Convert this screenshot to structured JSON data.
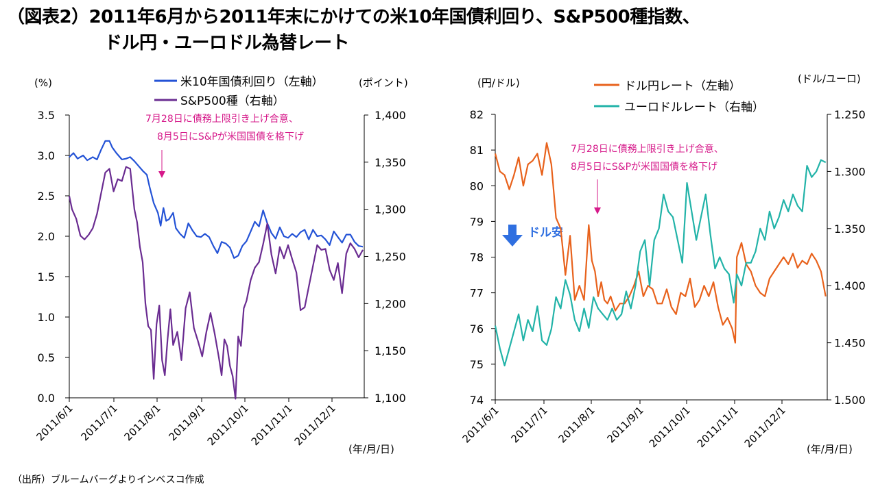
{
  "page": {
    "title_line1": "（図表2）2011年6月から2011年末にかけての米10年国債利回り、S&P500種指数、",
    "title_line2": "ドル円・ユーロドル為替レート",
    "source": "（出所）ブルームバーグよりインベスコ作成"
  },
  "colors": {
    "us10y": "#2453d6",
    "sp500": "#6a2c91",
    "usdjpy": "#e8621c",
    "eurusd": "#22b3a8",
    "annotation": "#d6198a",
    "dollar_weak_arrow": "#2f6fe0"
  },
  "chart_data": [
    {
      "type": "line",
      "title": "米10年国債利回り・S&P500種",
      "left_axis_unit": "(%)",
      "right_axis_unit": "(ポイント)",
      "x_unit": "(年/月/日)",
      "x_ticks": [
        "2011/6/1",
        "2011/7/1",
        "2011/8/1",
        "2011/9/1",
        "2011/10/1",
        "2011/11/1",
        "2011/12/1"
      ],
      "x_range_days": [
        0,
        213
      ],
      "ylim_left": [
        0,
        3.5
      ],
      "yticks_left": [
        "0.0",
        "0.5",
        "1.0",
        "1.5",
        "2.0",
        "2.5",
        "3.0",
        "3.5"
      ],
      "ylim_right": [
        1100,
        1400
      ],
      "yticks_right": [
        "1,100",
        "1,150",
        "1,200",
        "1,250",
        "1,300",
        "1,350",
        "1,400"
      ],
      "legend": [
        "米10年国債利回り（左軸）",
        "S&P500種（右軸）"
      ],
      "annotation": [
        "7月28日に債務上限引き上げ合意、",
        "8月5日にS&Pが米国国債を格下げ"
      ],
      "series": [
        {
          "name": "米10年国債利回り（左軸）",
          "axis": "left",
          "x": [
            0,
            3,
            6,
            10,
            13,
            17,
            20,
            23,
            26,
            29,
            31,
            34,
            38,
            41,
            44,
            47,
            50,
            53,
            56,
            58,
            61,
            64,
            66,
            68,
            70,
            72,
            75,
            77,
            80,
            83,
            86,
            89,
            92,
            95,
            98,
            101,
            104,
            107,
            110,
            113,
            116,
            119,
            122,
            125,
            128,
            131,
            134,
            137,
            140,
            143,
            146,
            149,
            152,
            155,
            158,
            161,
            164,
            167,
            170,
            173,
            176,
            179,
            182,
            185,
            188,
            191,
            194,
            197,
            200,
            203,
            206,
            209,
            212
          ],
          "values": [
            2.98,
            3.03,
            2.96,
            3.0,
            2.94,
            2.98,
            2.95,
            3.07,
            3.18,
            3.18,
            3.1,
            3.03,
            2.95,
            2.96,
            2.98,
            2.93,
            2.87,
            2.81,
            2.76,
            2.61,
            2.41,
            2.29,
            2.13,
            2.35,
            2.19,
            2.21,
            2.29,
            2.1,
            2.03,
            1.98,
            2.16,
            2.07,
            2.0,
            1.99,
            2.03,
            1.99,
            1.88,
            1.79,
            1.93,
            1.91,
            1.86,
            1.73,
            1.76,
            1.88,
            1.94,
            2.06,
            2.18,
            2.12,
            2.32,
            2.16,
            2.04,
            1.97,
            2.11,
            2.0,
            1.98,
            2.03,
            1.99,
            2.05,
            2.08,
            1.96,
            2.08,
            2.0,
            2.01,
            1.96,
            1.89,
            2.06,
            1.99,
            1.92,
            2.02,
            2.02,
            1.93,
            1.88,
            1.87
          ]
        },
        {
          "name": "S&P500種（右軸）",
          "axis": "right",
          "x": [
            0,
            2,
            5,
            8,
            11,
            14,
            17,
            20,
            23,
            26,
            29,
            32,
            35,
            38,
            41,
            44,
            47,
            49,
            51,
            53,
            55,
            57,
            59,
            61,
            63,
            65,
            67,
            69,
            71,
            73,
            75,
            78,
            81,
            84,
            87,
            90,
            93,
            96,
            99,
            102,
            105,
            108,
            110,
            112,
            114,
            116,
            118,
            120,
            122,
            124,
            126,
            128,
            131,
            134,
            137,
            140,
            143,
            146,
            149,
            152,
            155,
            158,
            161,
            164,
            167,
            170,
            173,
            176,
            179,
            182,
            185,
            188,
            191,
            194,
            197,
            200,
            203,
            206,
            209,
            212
          ],
          "values": [
            1314,
            1300,
            1290,
            1272,
            1268,
            1273,
            1280,
            1295,
            1317,
            1339,
            1343,
            1319,
            1332,
            1330,
            1345,
            1343,
            1300,
            1286,
            1260,
            1244,
            1200,
            1176,
            1172,
            1120,
            1178,
            1198,
            1140,
            1124,
            1162,
            1194,
            1156,
            1170,
            1140,
            1195,
            1212,
            1174,
            1160,
            1144,
            1170,
            1190,
            1168,
            1143,
            1124,
            1162,
            1155,
            1134,
            1123,
            1099,
            1165,
            1155,
            1195,
            1203,
            1225,
            1238,
            1244,
            1263,
            1285,
            1252,
            1232,
            1260,
            1248,
            1262,
            1247,
            1233,
            1193,
            1196,
            1218,
            1240,
            1262,
            1257,
            1258,
            1236,
            1225,
            1243,
            1211,
            1253,
            1264,
            1258,
            1249,
            1257
          ]
        }
      ]
    },
    {
      "type": "line",
      "title": "ドル円・ユーロドル為替レート",
      "left_axis_unit": "(円/ドル)",
      "right_axis_unit": "(ドル/ユーロ)",
      "right_axis_inverted": true,
      "x_unit": "(年/月/日)",
      "x_ticks": [
        "2011/6/1",
        "2011/7/1",
        "2011/8/1",
        "2011/9/1",
        "2011/10/1",
        "2011/11/1",
        "2011/12/1"
      ],
      "x_range_days": [
        0,
        213
      ],
      "ylim_left": [
        74,
        82
      ],
      "yticks_left": [
        "74",
        "75",
        "76",
        "77",
        "78",
        "79",
        "80",
        "81",
        "82"
      ],
      "ylim_right": [
        1.25,
        1.5
      ],
      "yticks_right": [
        "1.250",
        "1.300",
        "1.350",
        "1.400",
        "1.450",
        "1.500"
      ],
      "legend": [
        "ドル円レート（左軸）",
        "ユーロドルレート（右軸）"
      ],
      "annotation": [
        "7月28日に債務上限引き上げ合意、",
        "8月5日にS&Pが米国国債を格下げ"
      ],
      "dollar_weak_label": "ドル安",
      "series": [
        {
          "name": "ドル円レート（左軸）",
          "axis": "left",
          "x": [
            0,
            3,
            6,
            9,
            12,
            15,
            18,
            21,
            24,
            27,
            30,
            33,
            36,
            39,
            42,
            45,
            48,
            51,
            54,
            57,
            60,
            62,
            64,
            66,
            68,
            70,
            72,
            74,
            77,
            80,
            83,
            86,
            89,
            92,
            95,
            98,
            101,
            104,
            107,
            110,
            113,
            116,
            119,
            122,
            125,
            128,
            131,
            134,
            137,
            140,
            143,
            146,
            149,
            152,
            154,
            155,
            158,
            161,
            164,
            167,
            170,
            173,
            176,
            179,
            182,
            185,
            188,
            191,
            194,
            197,
            200,
            203,
            206,
            209,
            212
          ],
          "values": [
            80.9,
            80.4,
            80.3,
            79.9,
            80.3,
            80.8,
            80.0,
            80.6,
            80.7,
            80.9,
            80.3,
            81.2,
            80.6,
            79.1,
            78.8,
            77.5,
            78.6,
            76.8,
            77.2,
            76.8,
            78.9,
            77.9,
            77.6,
            76.9,
            77.3,
            76.8,
            76.7,
            76.9,
            76.5,
            76.7,
            76.7,
            76.9,
            77.2,
            77.6,
            76.9,
            77.2,
            77.1,
            76.7,
            76.7,
            77.1,
            76.6,
            76.4,
            77.0,
            76.9,
            77.4,
            76.6,
            76.8,
            77.2,
            76.9,
            77.3,
            76.6,
            76.1,
            76.3,
            76.0,
            75.6,
            78.0,
            78.4,
            77.8,
            77.6,
            77.2,
            77.0,
            76.9,
            77.4,
            77.6,
            77.8,
            78.0,
            77.8,
            78.1,
            77.7,
            77.9,
            77.8,
            78.1,
            77.9,
            77.6,
            76.9
          ]
        },
        {
          "name": "ユーロドルレート（右軸）",
          "axis": "right",
          "x": [
            0,
            3,
            6,
            9,
            12,
            15,
            18,
            21,
            24,
            27,
            30,
            33,
            36,
            39,
            42,
            45,
            48,
            51,
            54,
            57,
            60,
            63,
            66,
            69,
            72,
            75,
            78,
            81,
            84,
            87,
            90,
            93,
            96,
            99,
            102,
            105,
            108,
            111,
            114,
            117,
            120,
            123,
            126,
            129,
            132,
            135,
            138,
            141,
            144,
            147,
            150,
            153,
            155,
            158,
            161,
            164,
            167,
            170,
            173,
            176,
            179,
            182,
            185,
            188,
            191,
            194,
            197,
            200,
            203,
            206,
            209,
            212
          ],
          "values": [
            1.435,
            1.455,
            1.47,
            1.455,
            1.44,
            1.425,
            1.448,
            1.43,
            1.44,
            1.418,
            1.448,
            1.452,
            1.438,
            1.41,
            1.42,
            1.395,
            1.408,
            1.43,
            1.44,
            1.42,
            1.437,
            1.41,
            1.42,
            1.425,
            1.43,
            1.42,
            1.43,
            1.425,
            1.405,
            1.42,
            1.4,
            1.37,
            1.36,
            1.4,
            1.36,
            1.35,
            1.32,
            1.335,
            1.34,
            1.36,
            1.38,
            1.31,
            1.335,
            1.36,
            1.34,
            1.32,
            1.355,
            1.385,
            1.375,
            1.385,
            1.39,
            1.415,
            1.39,
            1.4,
            1.38,
            1.38,
            1.37,
            1.35,
            1.36,
            1.335,
            1.35,
            1.34,
            1.325,
            1.335,
            1.32,
            1.33,
            1.335,
            1.295,
            1.305,
            1.3,
            1.29,
            1.292
          ]
        }
      ]
    }
  ]
}
